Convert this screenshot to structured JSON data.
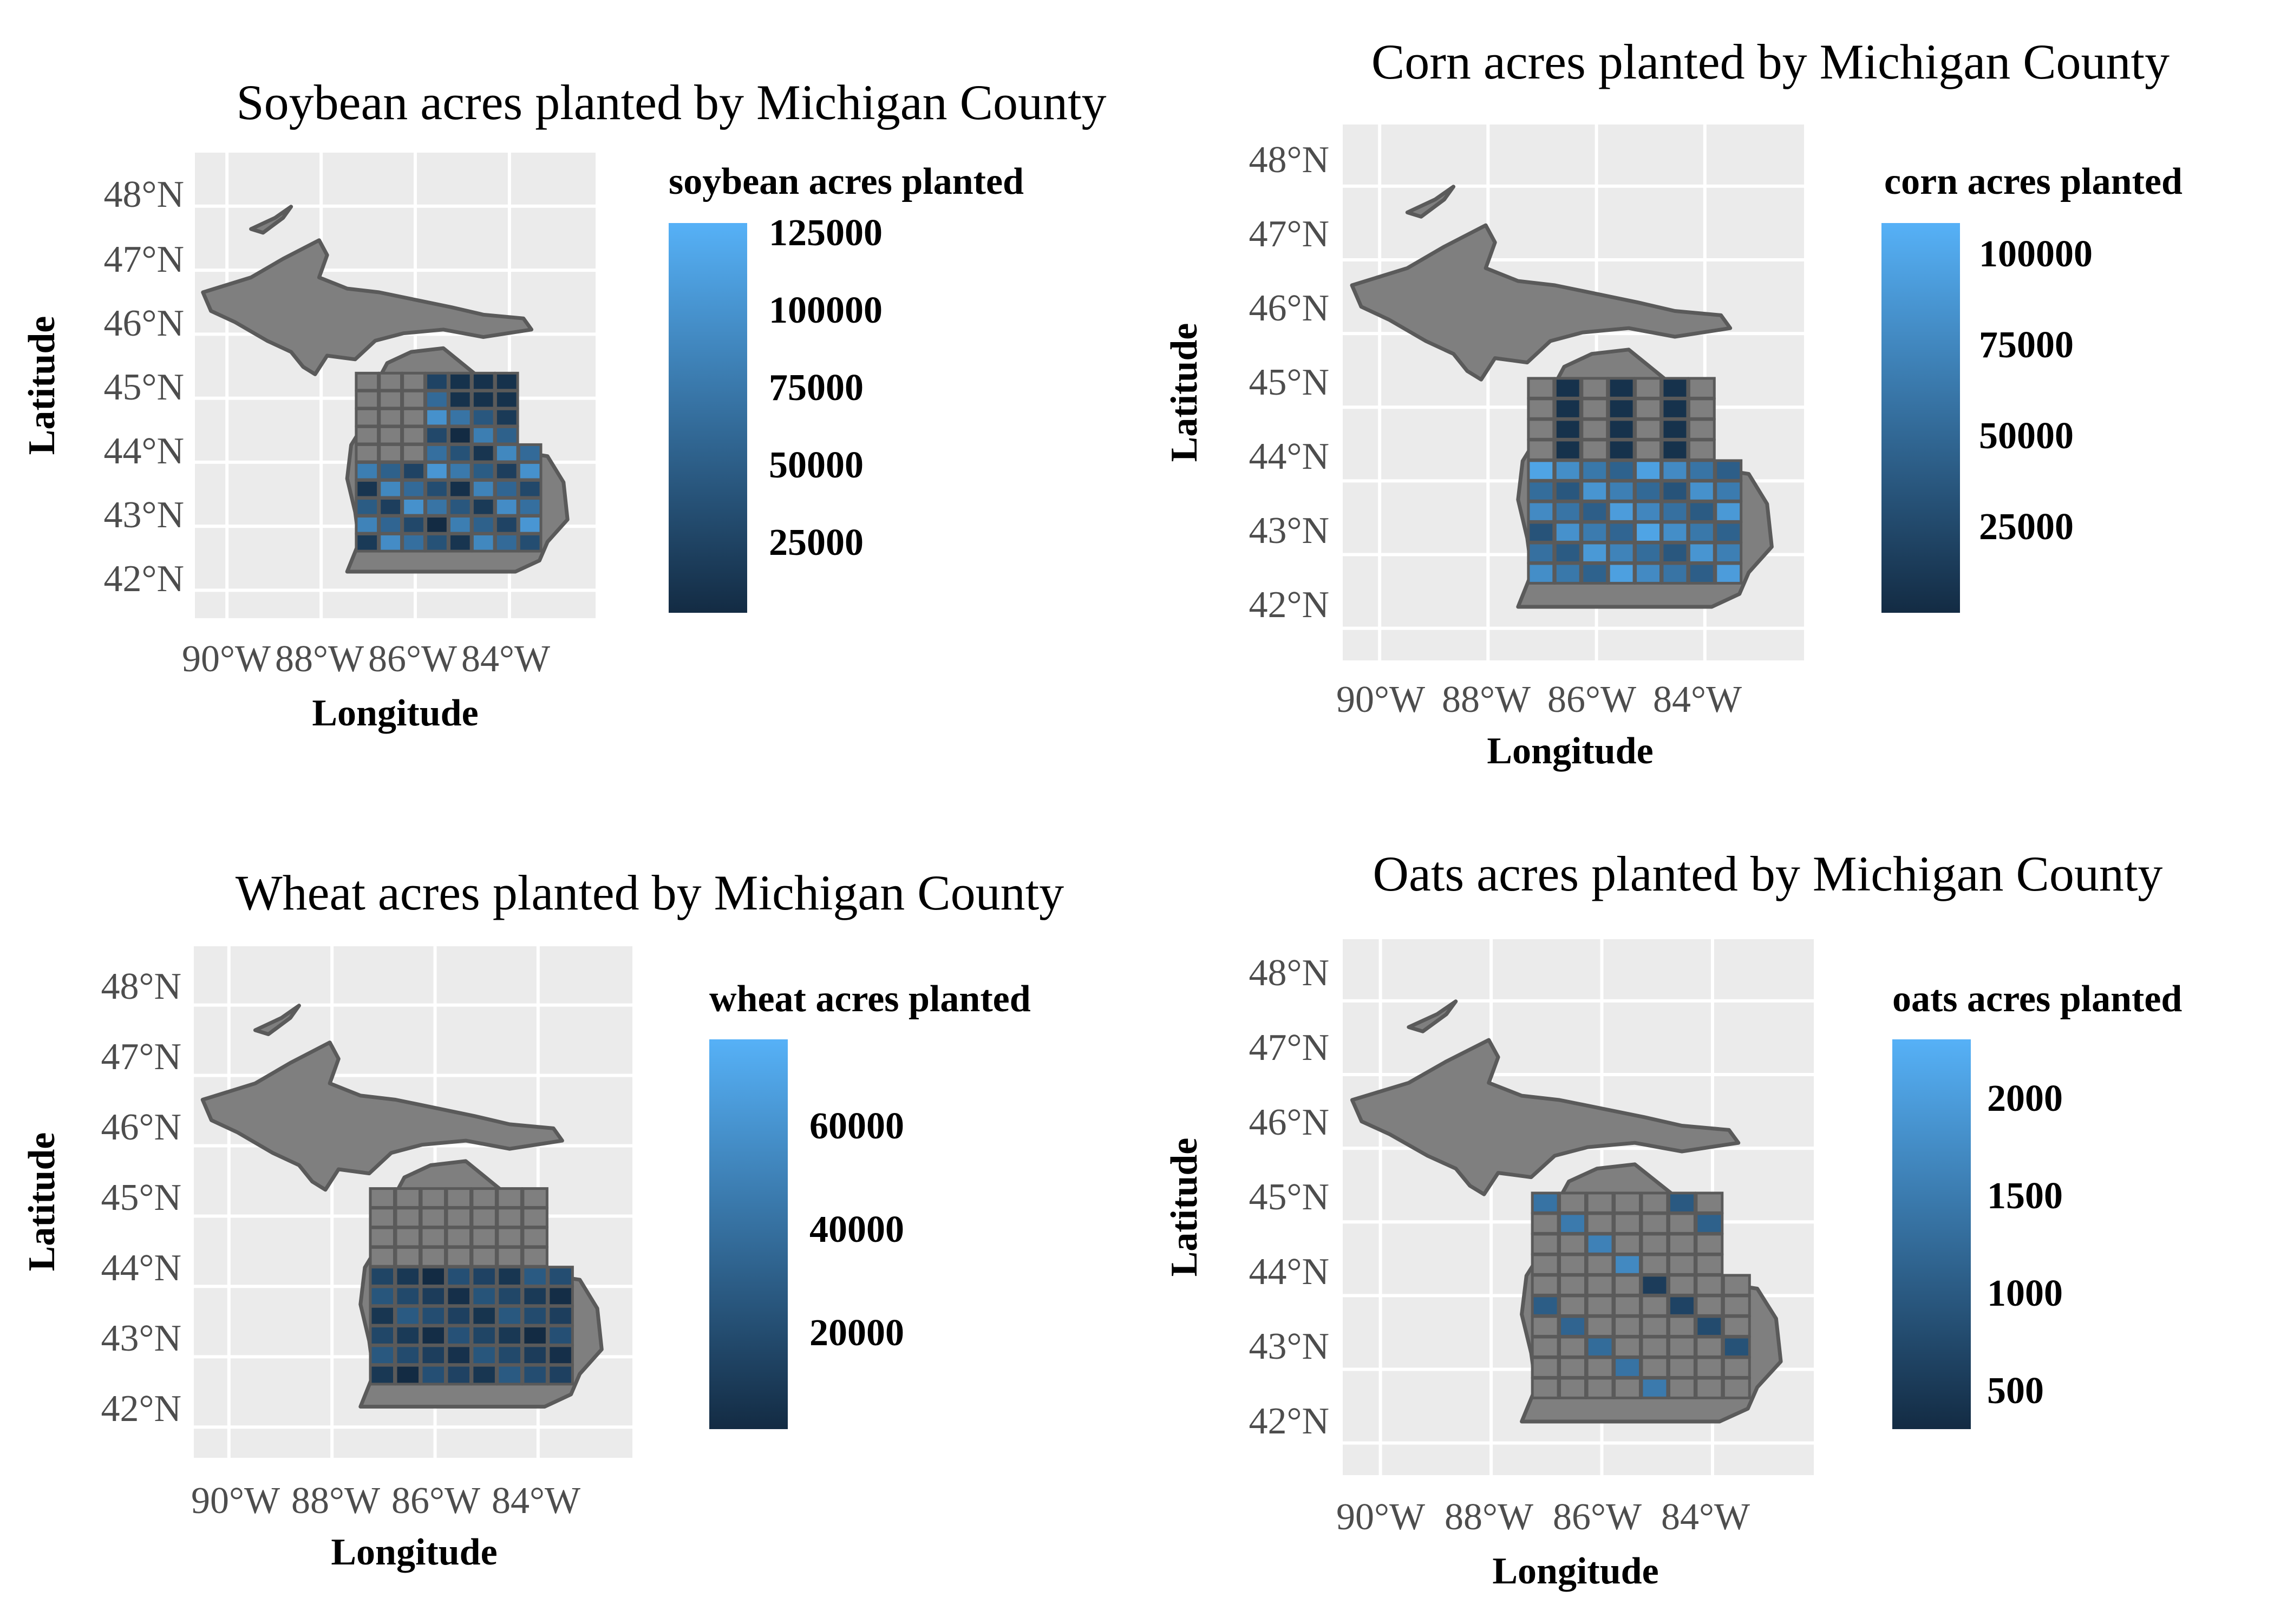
{
  "panels": [
    {
      "title": "Soybean acres planted by Michigan County",
      "legend_title": "soybean acres planted",
      "legend_ticks": [
        "125000",
        "100000",
        "75000",
        "50000",
        "25000"
      ],
      "x_ticks": [
        "90°W",
        "88°W",
        "86°W",
        "84°W"
      ],
      "y_ticks": [
        "48°N",
        "47°N",
        "46°N",
        "45°N",
        "44°N",
        "43°N",
        "42°N"
      ],
      "xlabel": "Longitude",
      "ylabel": "Latitude"
    },
    {
      "title": "Corn acres planted by Michigan County",
      "legend_title": "corn acres planted",
      "legend_ticks": [
        "100000",
        "75000",
        "50000",
        "25000"
      ],
      "x_ticks": [
        "90°W",
        "88°W",
        "86°W",
        "84°W"
      ],
      "y_ticks": [
        "48°N",
        "47°N",
        "46°N",
        "45°N",
        "44°N",
        "43°N",
        "42°N"
      ],
      "xlabel": "Longitude",
      "ylabel": "Latitude"
    },
    {
      "title": "Wheat acres planted by Michigan County",
      "legend_title": "wheat acres planted",
      "legend_ticks": [
        "60000",
        "40000",
        "20000"
      ],
      "x_ticks": [
        "90°W",
        "88°W",
        "86°W",
        "84°W"
      ],
      "y_ticks": [
        "48°N",
        "47°N",
        "46°N",
        "45°N",
        "44°N",
        "43°N",
        "42°N"
      ],
      "xlabel": "Longitude",
      "ylabel": "Latitude"
    },
    {
      "title": "Oats acres planted by Michigan County",
      "legend_title": "oats acres planted",
      "legend_ticks": [
        "2000",
        "1500",
        "1000",
        "500"
      ],
      "x_ticks": [
        "90°W",
        "88°W",
        "86°W",
        "84°W"
      ],
      "y_ticks": [
        "48°N",
        "47°N",
        "46°N",
        "45°N",
        "44°N",
        "43°N",
        "42°N"
      ],
      "xlabel": "Longitude",
      "ylabel": "Latitude"
    }
  ],
  "colors": {
    "panel_bg": "#ebebeb",
    "grid": "#ffffff",
    "no_data": "#7f7f7f",
    "county_border": "#5a5a5a",
    "gradient_low": "#132b43",
    "gradient_high": "#56b1f7"
  }
}
